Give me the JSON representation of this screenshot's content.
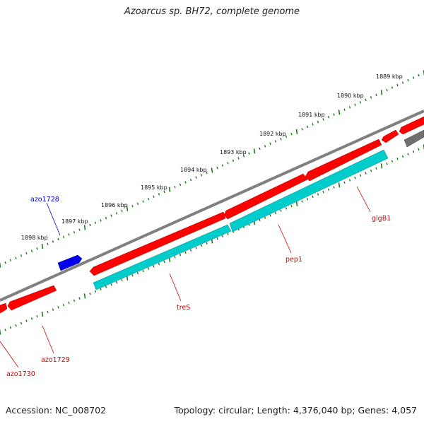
{
  "title": "Azoarcus sp. BH72, complete genome",
  "footer": {
    "accession": "Accession: NC_008702",
    "summary": "Topology: circular; Length: 4,376,040 bp; Genes: 4,057"
  },
  "colors": {
    "backbone": "#808080",
    "gene_red": "#ff0000",
    "gene_cyan": "#00cccc",
    "gene_blue": "#0000ee",
    "gene_gray": "#707070",
    "tick": "#1a7a1a",
    "label_red": "#cc0000",
    "label_blue": "#0000cc"
  },
  "ruler_labels": [
    "1889 kbp",
    "1890 kbp",
    "1891 kbp",
    "1892 kbp",
    "1893 kbp",
    "1894 kbp",
    "1895 kbp",
    "1896 kbp",
    "1897 kbp",
    "1898 kbp"
  ],
  "genes": [
    {
      "label": "azo1728",
      "color": "blue"
    },
    {
      "label": "pep1",
      "color": "red"
    },
    {
      "label": "glgB1",
      "color": "red"
    },
    {
      "label": "treS",
      "color": "red"
    },
    {
      "label": "azo1729",
      "color": "red"
    },
    {
      "label": "azo1730",
      "color": "red"
    }
  ]
}
